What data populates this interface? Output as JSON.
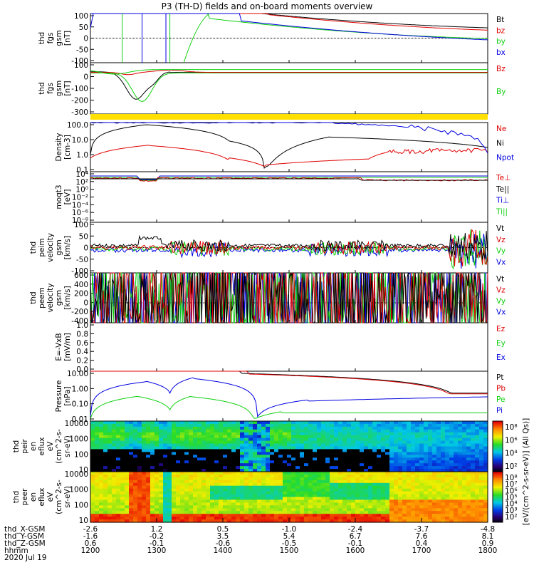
{
  "title": "P3 (TH-D) fields and on-board moments overview",
  "colors": {
    "black": "#000000",
    "red": "#e00000",
    "green": "#10d010",
    "blue": "#0000e0",
    "yellow": "#ffe000"
  },
  "chart_data": [
    {
      "type": "line",
      "panel": "fgs_gsm",
      "ylabel": [
        "thd",
        "fgs",
        "gsm",
        "[nT]"
      ],
      "ylim": [
        -100,
        100
      ],
      "yticks": [
        "100",
        "50",
        "0",
        "-50",
        "-100"
      ],
      "series": [
        {
          "name": "Bt",
          "color": "black"
        },
        {
          "name": "bz",
          "color": "red"
        },
        {
          "name": "by",
          "color": "green"
        },
        {
          "name": "bx",
          "color": "blue"
        }
      ]
    },
    {
      "type": "line",
      "panel": "fgs_gsm_scaled",
      "ylabel": [
        "thd",
        "fgs",
        "gsm",
        "[nT]"
      ],
      "ylim": [
        -350,
        100
      ],
      "yticks": [
        "100",
        "0",
        "-100",
        "-200",
        "-300"
      ],
      "series": [
        {
          "name": "Bz",
          "color": "red"
        },
        {
          "name": "By",
          "color": "green"
        }
      ]
    },
    {
      "type": "bar",
      "panel": "mode_bar",
      "color": "yellow"
    },
    {
      "type": "line",
      "panel": "density",
      "ylabel": [
        "Density",
        "[cm-3]"
      ],
      "yscale": "log",
      "yticks": [
        "100.0",
        "10.0",
        "1.0",
        "0.1"
      ],
      "series": [
        {
          "name": "Ne",
          "color": "red"
        },
        {
          "name": "Ni",
          "color": "black"
        },
        {
          "name": "Npot",
          "color": "blue"
        }
      ]
    },
    {
      "type": "line",
      "panel": "temperature",
      "ylabel": [
        "moqt3",
        "[eV]"
      ],
      "yscale": "log",
      "yticks": [
        "10⁴",
        "10²",
        "10⁰",
        "10⁻²",
        "10⁻⁴",
        "10⁻⁶",
        "10⁻⁸"
      ],
      "series": [
        {
          "name": "Te⊥",
          "color": "red"
        },
        {
          "name": "Te||",
          "color": "black"
        },
        {
          "name": "Ti⊥",
          "color": "blue"
        },
        {
          "name": "Ti||",
          "color": "green"
        }
      ]
    },
    {
      "type": "line",
      "panel": "ion_velocity",
      "ylabel": [
        "thd",
        "peim",
        "velocity",
        "gsm",
        "[km/s]"
      ],
      "ylim": [
        -100,
        100
      ],
      "yticks": [
        "100",
        "50",
        "0",
        "-50",
        "-100"
      ],
      "series": [
        {
          "name": "Vt",
          "color": "black"
        },
        {
          "name": "Vz",
          "color": "red"
        },
        {
          "name": "Vy",
          "color": "green"
        },
        {
          "name": "Vx",
          "color": "blue"
        }
      ]
    },
    {
      "type": "line",
      "panel": "electron_velocity",
      "ylabel": [
        "thd",
        "peem",
        "velocity",
        "gsm",
        "[km/s]"
      ],
      "ylim": [
        -400,
        600
      ],
      "yticks": [
        "600",
        "400",
        "200",
        "0",
        "-200",
        "-400"
      ],
      "series": [
        {
          "name": "Vt",
          "color": "black"
        },
        {
          "name": "Vz",
          "color": "red"
        },
        {
          "name": "Vy",
          "color": "green"
        },
        {
          "name": "Vx",
          "color": "blue"
        }
      ]
    },
    {
      "type": "line",
      "panel": "efield",
      "ylabel": [
        "E=-VxB",
        "[mV/m]"
      ],
      "ylim": [
        0,
        1
      ],
      "yticks": [
        "1.0",
        "0.8",
        "0.6",
        "0.4",
        "0.2",
        "0.0"
      ],
      "series": [
        {
          "name": "Ez",
          "color": "red"
        },
        {
          "name": "Ey",
          "color": "green"
        },
        {
          "name": "Ex",
          "color": "blue"
        }
      ]
    },
    {
      "type": "line",
      "panel": "pressure",
      "ylabel": [
        "Pressure",
        "[nPa]"
      ],
      "yscale": "log",
      "yticks": [
        "10.00",
        "1.00",
        "0.10",
        "0.01"
      ],
      "series": [
        {
          "name": "Pt",
          "color": "black"
        },
        {
          "name": "Pb",
          "color": "red"
        },
        {
          "name": "Pe",
          "color": "green"
        },
        {
          "name": "Pi",
          "color": "blue"
        }
      ]
    },
    {
      "type": "heatmap",
      "panel": "ion_eflux",
      "ylabel": [
        "thd",
        "peir",
        "en",
        "eflux",
        "eV",
        "(cm^2-s-",
        "sr-eV)"
      ],
      "yscale": "log",
      "yticks": [
        "10000",
        "1000",
        "100",
        "10"
      ],
      "colorbar_ticks": [
        "10⁸",
        "10⁶",
        "10⁴",
        "10²"
      ]
    },
    {
      "type": "heatmap",
      "panel": "electron_eflux",
      "ylabel": [
        "thd",
        "peer",
        "en",
        "eflux",
        "eV",
        "(cm^2-s-",
        "sr-eV)"
      ],
      "yscale": "log",
      "yticks": [
        "10000",
        "1000",
        "100",
        "10"
      ],
      "colorbar_ticks": [
        "10⁸",
        "10⁷",
        "10⁶",
        "10⁵",
        "10⁴",
        "10³",
        "10²"
      ],
      "colorbar_label": "[eV/(cm^2-s-sr-eV)] (All Qs)]"
    }
  ],
  "x_axis": {
    "times": [
      "1200",
      "1300",
      "1400",
      "1500",
      "1600",
      "1700",
      "1800"
    ],
    "rows": [
      {
        "label": "thd_X-GSM",
        "values": [
          "-2.6",
          "1.2",
          "0.5",
          "-1.0",
          "-2.4",
          "-3.7",
          "-4.8"
        ]
      },
      {
        "label": "thd_Y-GSM",
        "values": [
          "-1.6",
          "-0.2",
          "3.5",
          "5.4",
          "6.7",
          "7.6",
          "8.1"
        ]
      },
      {
        "label": "thd_Z-GSM",
        "values": [
          "0.6",
          "-0.1",
          "-0.6",
          "-0.5",
          "-0.1",
          "0.4",
          "0.9"
        ]
      },
      {
        "label": "hhmm",
        "values": [
          "1200",
          "1300",
          "1400",
          "1500",
          "1600",
          "1700",
          "1800"
        ]
      }
    ],
    "date": "2020 Jul 19"
  }
}
